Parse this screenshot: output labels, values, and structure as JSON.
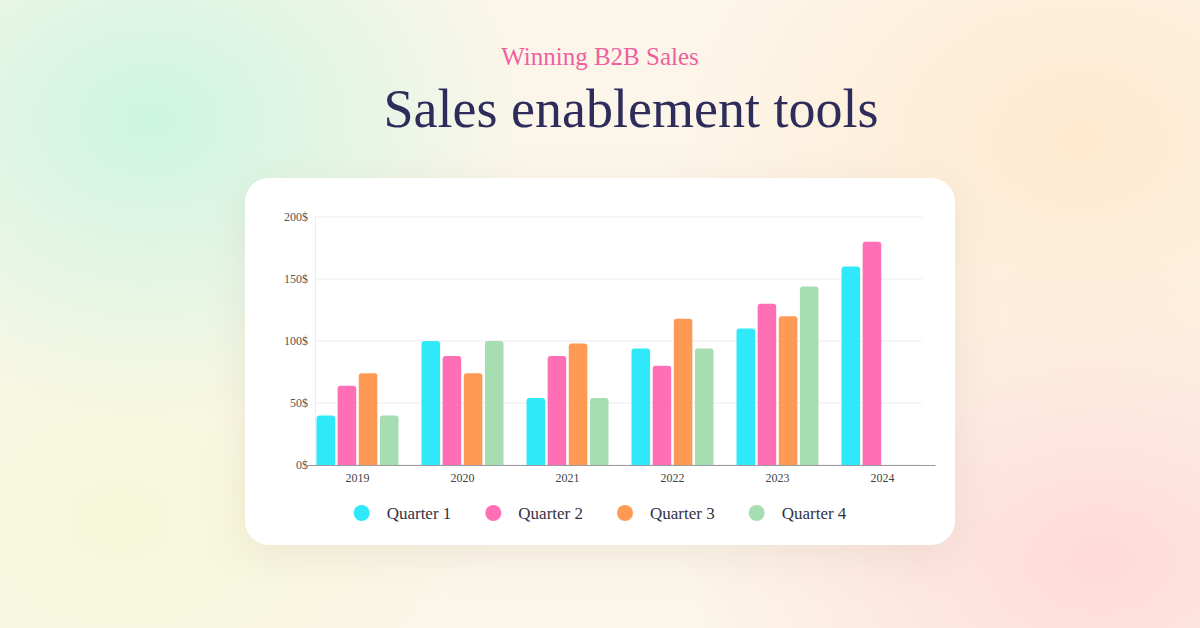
{
  "chart_data": {
    "type": "bar",
    "title": "Sales enablement tools",
    "subtitle": "Winning B2B Sales",
    "categories": [
      "2019",
      "2020",
      "2021",
      "2022",
      "2023",
      "2024"
    ],
    "series": [
      {
        "name": "Quarter 1",
        "color": "#2fe9fb",
        "values": [
          40,
          100,
          54,
          94,
          110,
          160
        ]
      },
      {
        "name": "Quarter 2",
        "color": "#ff6fb5",
        "values": [
          64,
          88,
          88,
          80,
          130,
          180
        ]
      },
      {
        "name": "Quarter 3",
        "color": "#ff9a55",
        "values": [
          74,
          74,
          98,
          118,
          120,
          null
        ]
      },
      {
        "name": "Quarter 4",
        "color": "#a6deb2",
        "values": [
          40,
          100,
          54,
          94,
          144,
          null
        ]
      }
    ],
    "ylim": [
      0,
      200
    ],
    "yticks": [
      {
        "value": 0,
        "label": "0$"
      },
      {
        "value": 50,
        "label": "50$"
      },
      {
        "value": 100,
        "label": "100$"
      },
      {
        "value": 150,
        "label": "150$"
      },
      {
        "value": 200,
        "label": "200$"
      }
    ],
    "grid": true,
    "legend": "bottom"
  }
}
